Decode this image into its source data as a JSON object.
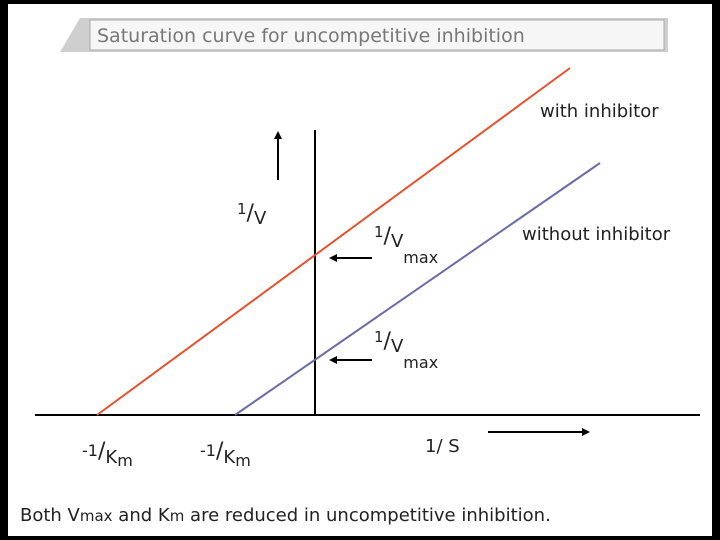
{
  "title": "Saturation curve for uncompetitive inhibition",
  "y_axis_label": {
    "numerator": "1",
    "separator": "/",
    "denominator": "V"
  },
  "x_axis_label": "1/ S",
  "lines": [
    {
      "label": "with inhibitor",
      "color": "#e8532e"
    },
    {
      "label": "without inhibitor",
      "color": "#6b6ba8"
    }
  ],
  "intercept_labels": [
    {
      "numerator": "1",
      "separator": "/",
      "denominator": "V",
      "subscript": "max"
    },
    {
      "numerator": "1",
      "separator": "/",
      "denominator": "V",
      "subscript": "max"
    }
  ],
  "x_intercept_labels": [
    {
      "prefix": "-1",
      "separator": "/",
      "denominator": "K",
      "subscript": "m"
    },
    {
      "prefix": "-1",
      "separator": "/",
      "denominator": "K",
      "subscript": "m"
    }
  ],
  "caption": [
    "Both V",
    "max",
    " and K",
    "m",
    " are reduced in uncompetitive inhibition."
  ]
}
